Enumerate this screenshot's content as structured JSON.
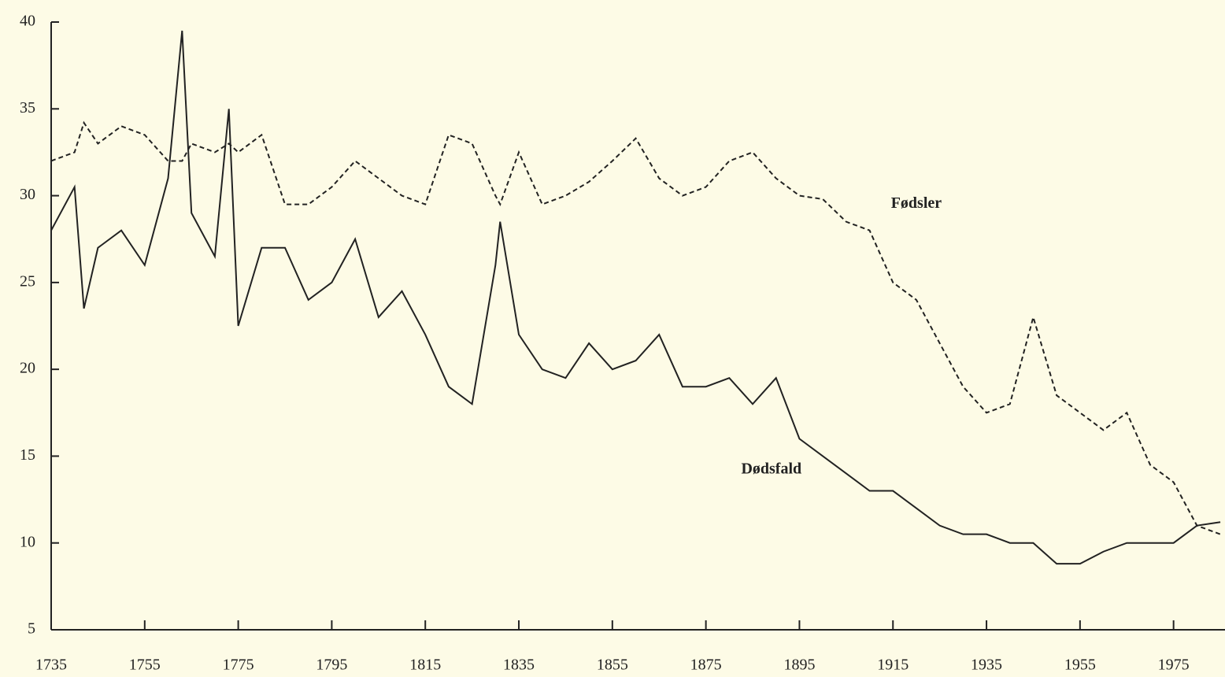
{
  "chart_data": {
    "type": "line",
    "x": [
      1735,
      1740,
      1742,
      1745,
      1750,
      1755,
      1760,
      1763,
      1765,
      1770,
      1773,
      1775,
      1780,
      1785,
      1790,
      1795,
      1800,
      1805,
      1810,
      1815,
      1820,
      1825,
      1830,
      1831,
      1835,
      1840,
      1845,
      1850,
      1855,
      1860,
      1865,
      1870,
      1875,
      1880,
      1885,
      1890,
      1895,
      1900,
      1905,
      1910,
      1915,
      1920,
      1925,
      1930,
      1935,
      1940,
      1945,
      1950,
      1955,
      1960,
      1965,
      1970,
      1975,
      1980,
      1985
    ],
    "series": [
      {
        "name": "Fødsler",
        "color": "#222222",
        "style": "dashed",
        "values": [
          32,
          32.5,
          34.2,
          33,
          34,
          33.5,
          32,
          32,
          33,
          32.5,
          33,
          32.5,
          33.5,
          29.5,
          29.5,
          30.5,
          32,
          31,
          30,
          29.5,
          33.5,
          33,
          30,
          29.5,
          32.5,
          29.5,
          30,
          30.8,
          32,
          33.3,
          31,
          30,
          30.5,
          32,
          32.5,
          31,
          30,
          29.8,
          28.5,
          28,
          25,
          24,
          21.5,
          19,
          17.5,
          18,
          23,
          18.5,
          17.5,
          16.5,
          17.5,
          14.5,
          13.5,
          11,
          10.5
        ]
      },
      {
        "name": "Dødsfald",
        "color": "#222222",
        "style": "solid",
        "values": [
          28,
          30.5,
          23.5,
          27,
          28,
          26,
          31,
          39.5,
          29,
          26.5,
          35,
          22.5,
          27,
          27,
          24,
          25,
          27.5,
          23,
          24.5,
          22,
          19,
          18,
          26,
          28.5,
          22,
          20,
          19.5,
          21.5,
          20,
          20.5,
          22,
          19,
          19,
          19.5,
          18,
          19.5,
          16,
          15,
          14,
          13,
          13,
          12,
          11,
          10.5,
          10.5,
          10,
          10,
          8.8,
          8.8,
          9.5,
          10,
          10,
          10,
          11,
          11.2
        ]
      }
    ],
    "annotations": [
      {
        "text": "Fødsler",
        "series": 0,
        "x": 1920,
        "y": 29.5
      },
      {
        "text": "Dødsfald",
        "series": 1,
        "x": 1889,
        "y": 14.2
      }
    ],
    "xlim": [
      1735,
      1986
    ],
    "ylim": [
      5,
      40
    ],
    "xticks": [
      1735,
      1755,
      1775,
      1795,
      1815,
      1835,
      1855,
      1875,
      1895,
      1915,
      1935,
      1955,
      1975
    ],
    "yticks": [
      5,
      10,
      15,
      20,
      25,
      30,
      35,
      40
    ],
    "grid": false
  }
}
